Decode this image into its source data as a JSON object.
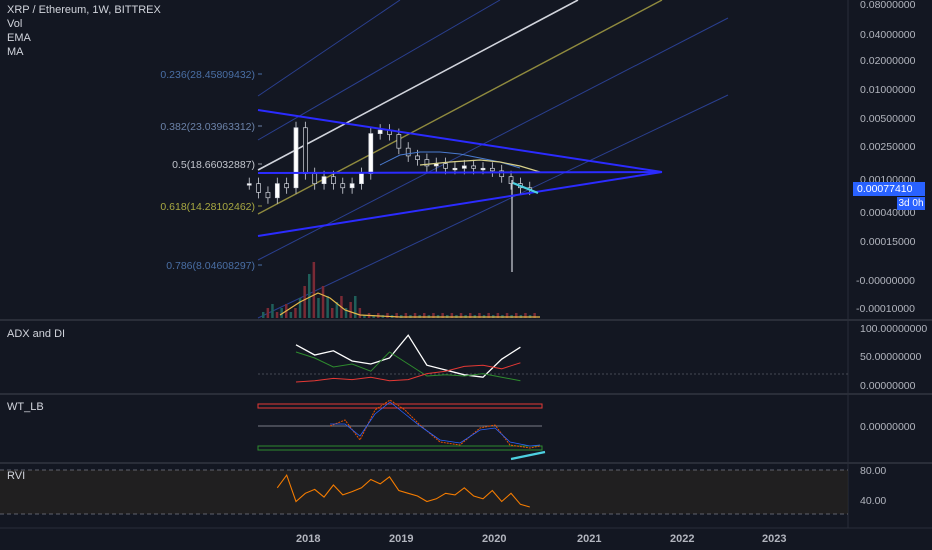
{
  "header": {
    "symbol_line": "XRP / Ethereum, 1W, BITTREX",
    "indicators": [
      "Vol",
      "EMA",
      "MA"
    ]
  },
  "panes": {
    "adx_label": "ADX and DI",
    "wt_label": "WT_LB",
    "rvi_label": "RVI"
  },
  "fib_levels": [
    {
      "label": "0.236(28.45809432)",
      "color": "#4a6fa5"
    },
    {
      "label": "0.382(23.03963312)",
      "color": "#6b82a8"
    },
    {
      "label": "0.5(18.66032887)",
      "color": "#9598a1"
    },
    {
      "label": "0.618(14.28102462)",
      "color": "#8f8f3a"
    },
    {
      "label": "0.786(8.04608297)",
      "color": "#4a6fa5"
    }
  ],
  "price_axis": {
    "main": [
      "0.08000000",
      "0.04000000",
      "0.02000000",
      "0.01000000",
      "0.00500000",
      "0.00250000",
      "0.00100000",
      "0.00040000",
      "0.00015000",
      "-0.00000000",
      "-0.00010000"
    ],
    "adx": [
      "100.00000000",
      "50.00000000",
      "0.00000000"
    ],
    "wt": [
      "0.00000000"
    ],
    "rvi": [
      "80.00",
      "40.00"
    ]
  },
  "last_price": "0.00077410",
  "countdown": "3d 0h",
  "time_axis": [
    "2018",
    "2019",
    "2020",
    "2021",
    "2022",
    "2023"
  ],
  "colors": {
    "background": "#131722",
    "accent": "#2962ff",
    "trendline": "#2b2bff",
    "pitchfork_median": "#d1d4dc",
    "pitchfork_olive": "#8f8a3e",
    "pitchfork_blue": "#2a3f8f",
    "adx": "#ffffff",
    "di_plus": "#2e8b2e",
    "di_minus": "#e53935",
    "cyan": "#4dd0e1",
    "rvi": "#f57c00"
  },
  "chart_data": [
    {
      "type": "line",
      "name": "price",
      "x": [
        2017.5,
        2017.6,
        2017.7,
        2017.8,
        2017.9,
        2018.0,
        2018.1,
        2018.2,
        2018.3,
        2018.4,
        2018.5,
        2018.6,
        2018.7,
        2018.8,
        2018.9,
        2019.0,
        2019.1,
        2019.2,
        2019.3,
        2019.4,
        2019.5,
        2019.6,
        2019.7,
        2019.8,
        2019.9,
        2020.0,
        2020.1,
        2020.2,
        2020.3,
        2020.4,
        2020.5
      ],
      "values": [
        0.0009,
        0.0007,
        0.0006,
        0.0009,
        0.0008,
        0.0045,
        0.0012,
        0.0009,
        0.0011,
        0.0009,
        0.0008,
        0.0009,
        0.0012,
        0.0038,
        0.0042,
        0.0037,
        0.0025,
        0.002,
        0.0018,
        0.0015,
        0.0016,
        0.0014,
        0.0014,
        0.0015,
        0.0014,
        0.0014,
        0.0013,
        0.0011,
        0.0009,
        0.0008,
        0.00077
      ]
    },
    {
      "type": "line",
      "name": "ADX and DI",
      "x": [
        2018.0,
        2018.2,
        2018.4,
        2018.6,
        2018.8,
        2019.0,
        2019.2,
        2019.4,
        2019.6,
        2019.8,
        2020.0,
        2020.2,
        2020.4
      ],
      "series": [
        {
          "values": [
            72,
            55,
            62,
            45,
            40,
            50,
            88,
            38,
            30,
            22,
            18,
            48,
            68
          ]
        },
        {
          "values": [
            60,
            50,
            35,
            40,
            28,
            60,
            40,
            20,
            22,
            20,
            24,
            18,
            12
          ]
        },
        {
          "values": [
            10,
            12,
            16,
            14,
            18,
            12,
            14,
            24,
            28,
            36,
            38,
            32,
            42
          ]
        }
      ]
    },
    {
      "type": "line",
      "name": "RVI",
      "x": [
        2017.8,
        2017.9,
        2018.0,
        2018.1,
        2018.2,
        2018.3,
        2018.4,
        2018.5,
        2018.6,
        2018.7,
        2018.8,
        2018.9,
        2019.0,
        2019.1,
        2019.2,
        2019.3,
        2019.4,
        2019.5,
        2019.6,
        2019.7,
        2019.8,
        2019.9,
        2020.0,
        2020.1,
        2020.2,
        2020.3,
        2020.4,
        2020.5
      ],
      "values": [
        55,
        78,
        30,
        45,
        52,
        38,
        60,
        42,
        48,
        55,
        70,
        62,
        75,
        50,
        45,
        40,
        30,
        35,
        45,
        42,
        55,
        40,
        35,
        50,
        30,
        45,
        25,
        20
      ],
      "ylim": [
        0,
        100
      ]
    }
  ]
}
